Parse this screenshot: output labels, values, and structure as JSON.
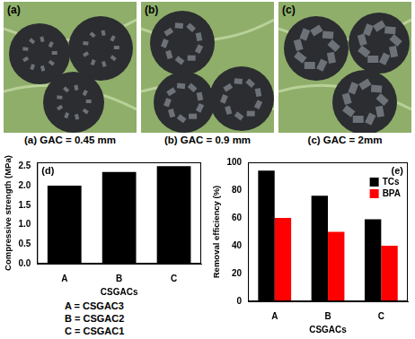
{
  "images": [
    {
      "panel": "(a)",
      "caption": "(a) GAC = 0.45 mm"
    },
    {
      "panel": "(b)",
      "caption": "(b) GAC = 0.9 mm"
    },
    {
      "panel": "(c)",
      "caption": "(c) GAC = 2mm"
    }
  ],
  "category_key": [
    "A = CSGAC3",
    "B = CSGAC2",
    "C = CSGAC1"
  ],
  "chart_data": [
    {
      "type": "bar",
      "annotations": [
        "(d)"
      ],
      "x_label": "CSGACs",
      "y_label": "Compressive strength (MPa)",
      "categories": [
        "A",
        "B",
        "C"
      ],
      "values": [
        2.0,
        2.35,
        2.5
      ],
      "color": "#000000",
      "ylim": [
        0,
        2.6
      ],
      "yticks": [
        {
          "value": 0,
          "label": "0.0"
        },
        {
          "value": 0.5,
          "label": "0.5"
        },
        {
          "value": 1,
          "label": "1.0"
        },
        {
          "value": 1.5,
          "label": "1.5"
        },
        {
          "value": 2,
          "label": "2.0"
        },
        {
          "value": 2.5,
          "label": "2.5"
        }
      ],
      "grid": false
    },
    {
      "type": "bar",
      "annotations": [
        "(e)"
      ],
      "x_label": "CSGACs",
      "y_label": "Removal efficiency (%)",
      "categories": [
        "A",
        "B",
        "C"
      ],
      "series": [
        {
          "name": "TCs",
          "color": "#000000",
          "values": [
            94,
            76,
            59
          ]
        },
        {
          "name": "BPA",
          "color": "#ff0000",
          "values": [
            60,
            50,
            40
          ]
        }
      ],
      "ylim": [
        0,
        100
      ],
      "yticks": [
        0,
        20,
        40,
        60,
        80,
        100
      ],
      "grid": false,
      "legend": "upper right"
    }
  ]
}
